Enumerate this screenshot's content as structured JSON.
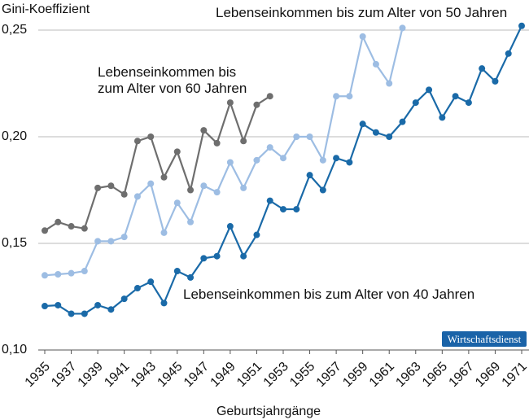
{
  "chart_data": {
    "type": "line",
    "y_label": "Gini-Koeffizient",
    "x_label": "Geburtsjahrgänge",
    "source_badge": "Wirtschaftsdienst",
    "x": [
      1935,
      1936,
      1937,
      1938,
      1939,
      1940,
      1941,
      1942,
      1943,
      1944,
      1945,
      1946,
      1947,
      1948,
      1949,
      1950,
      1951,
      1952,
      1953,
      1954,
      1955,
      1956,
      1957,
      1958,
      1959,
      1960,
      1961,
      1962,
      1963,
      1964,
      1965,
      1966,
      1967,
      1968,
      1969,
      1970,
      1971
    ],
    "xlim": [
      1935,
      1971
    ],
    "xticks": [
      1935,
      1937,
      1939,
      1941,
      1943,
      1945,
      1947,
      1949,
      1951,
      1953,
      1955,
      1957,
      1959,
      1961,
      1963,
      1965,
      1967,
      1969,
      1971
    ],
    "ylim": [
      0.1,
      0.26
    ],
    "yticks": [
      {
        "value": 0.1,
        "label": "0,10"
      },
      {
        "value": 0.15,
        "label": "0,15"
      },
      {
        "value": 0.2,
        "label": "0,20"
      },
      {
        "value": 0.25,
        "label": "0,25"
      }
    ],
    "grid": true,
    "series": [
      {
        "name": "Lebenseinkommen bis zum Alter von 60 Jahren",
        "color": "#6e6e6e",
        "values": [
          0.156,
          0.16,
          0.158,
          0.157,
          0.176,
          0.177,
          0.173,
          0.198,
          0.2,
          0.181,
          0.193,
          0.175,
          0.203,
          0.197,
          0.216,
          0.198,
          0.215,
          0.219,
          null,
          null,
          null,
          null,
          null,
          null,
          null,
          null,
          null,
          null,
          null,
          null,
          null,
          null,
          null,
          null,
          null,
          null,
          null
        ]
      },
      {
        "name": "Lebenseinkommen bis zum Alter von 50 Jahren",
        "color": "#9dbde3",
        "values": [
          0.135,
          0.1355,
          0.136,
          0.137,
          0.151,
          0.151,
          0.153,
          0.172,
          0.178,
          0.155,
          0.169,
          0.16,
          0.177,
          0.174,
          0.188,
          0.176,
          0.189,
          0.195,
          0.19,
          0.2,
          0.2,
          0.189,
          0.219,
          0.219,
          0.247,
          0.234,
          0.225,
          0.251,
          null,
          null,
          null,
          null,
          null,
          null,
          null,
          null,
          null
        ]
      },
      {
        "name": "Lebenseinkommen bis zum Alter von 40 Jahren",
        "color": "#1a6aa8",
        "values": [
          0.1206,
          0.121,
          0.117,
          0.117,
          0.121,
          0.119,
          0.124,
          0.129,
          0.132,
          0.122,
          0.137,
          0.134,
          0.143,
          0.144,
          0.158,
          0.144,
          0.154,
          0.17,
          0.166,
          0.166,
          0.182,
          0.175,
          0.19,
          0.188,
          0.206,
          0.202,
          0.2,
          0.207,
          0.216,
          0.222,
          0.209,
          0.219,
          0.216,
          0.232,
          0.226,
          0.239,
          0.252
        ]
      }
    ]
  }
}
